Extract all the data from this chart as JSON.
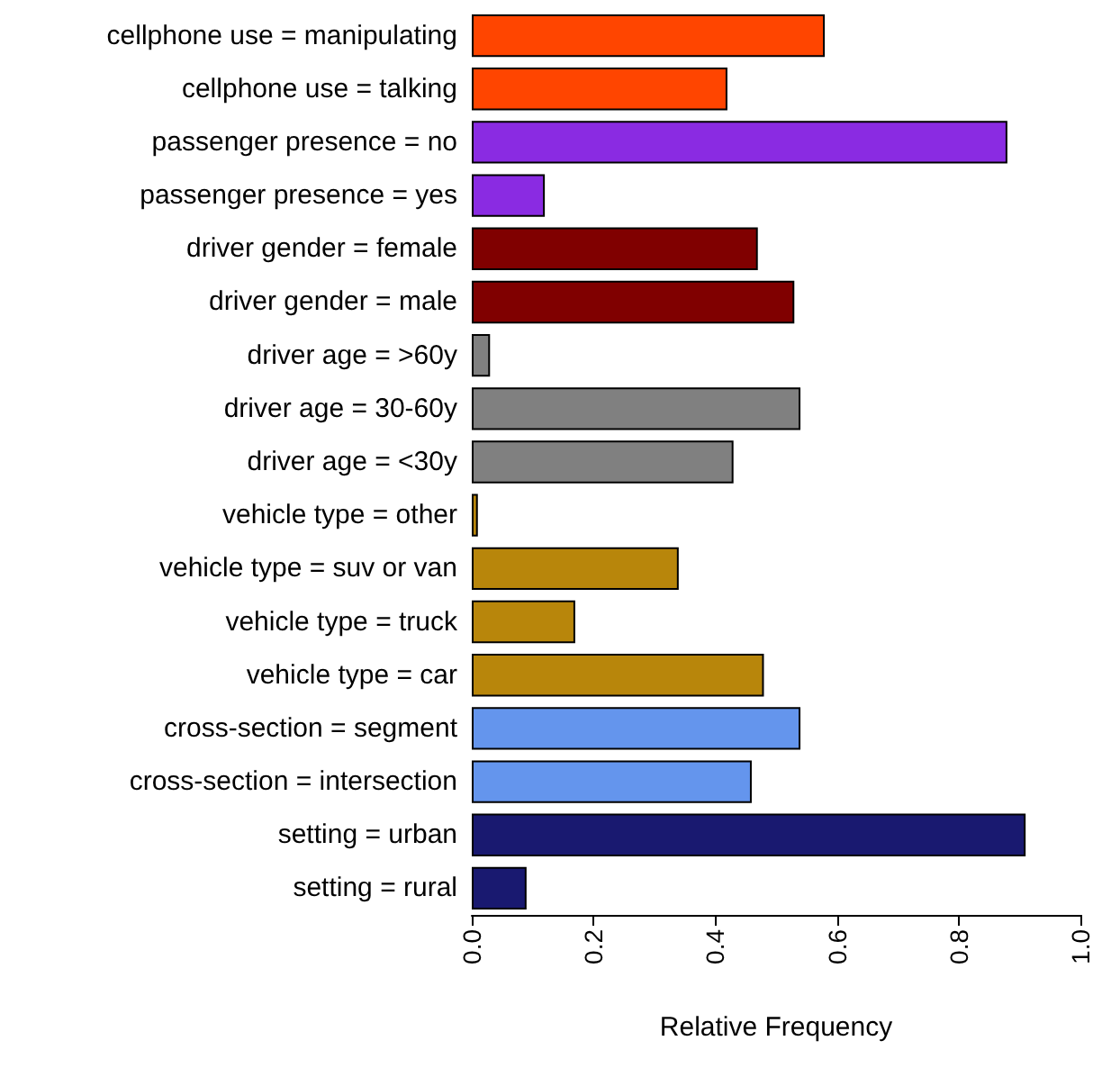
{
  "chart_data": {
    "type": "bar",
    "orientation": "horizontal",
    "xlabel": "Relative Frequency",
    "categories": [
      "cellphone use = manipulating",
      "cellphone use = talking",
      "passenger presence = no",
      "passenger presence = yes",
      "driver gender = female",
      "driver gender = male",
      "driver age = >60y",
      "driver age = 30-60y",
      "driver age = <30y",
      "vehicle type = other",
      "vehicle type = suv or van",
      "vehicle type = truck",
      "vehicle type = car",
      "cross-section = segment",
      "cross-section = intersection",
      "setting = urban",
      "setting = rural"
    ],
    "values": [
      0.58,
      0.42,
      0.88,
      0.12,
      0.47,
      0.53,
      0.03,
      0.54,
      0.43,
      0.01,
      0.34,
      0.17,
      0.48,
      0.54,
      0.46,
      0.91,
      0.09
    ],
    "colors": [
      "#ff4500",
      "#ff4500",
      "#8a2be2",
      "#8a2be2",
      "#800000",
      "#800000",
      "#808080",
      "#808080",
      "#808080",
      "#b8860b",
      "#b8860b",
      "#b8860b",
      "#b8860b",
      "#6495ed",
      "#6495ed",
      "#191970",
      "#191970"
    ],
    "xlim": [
      0,
      1
    ],
    "xticks": [
      {
        "value": 0,
        "label": "0.0"
      },
      {
        "value": 0.2,
        "label": "0.2"
      },
      {
        "value": 0.4,
        "label": "0.4"
      },
      {
        "value": 0.6,
        "label": "0.6"
      },
      {
        "value": 0.8,
        "label": "0.8"
      },
      {
        "value": 1,
        "label": "1.0"
      }
    ],
    "grid": false
  }
}
